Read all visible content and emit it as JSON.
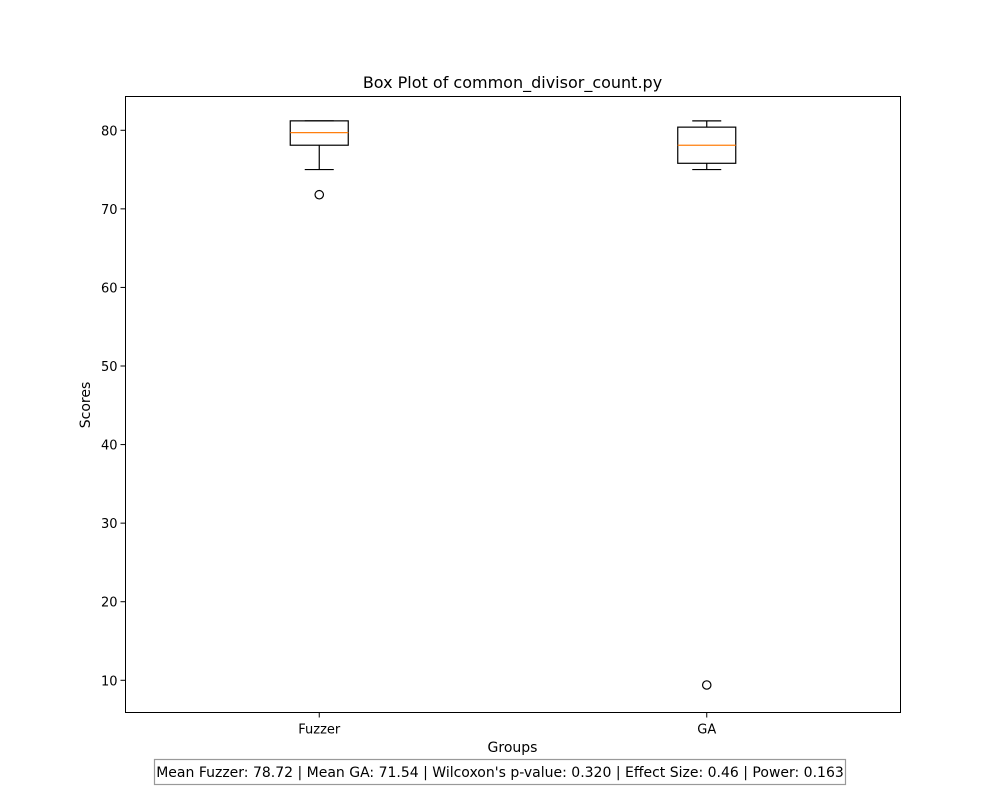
{
  "chart_data": {
    "type": "box",
    "title": "Box Plot of common_divisor_count.py",
    "xlabel": "Groups",
    "ylabel": "Scores",
    "ylim": [
      5.9,
      84.3
    ],
    "yticks": [
      10,
      20,
      30,
      40,
      50,
      60,
      70,
      80
    ],
    "grid": false,
    "categories": [
      "Fuzzer",
      "GA"
    ],
    "boxes": [
      {
        "name": "Fuzzer",
        "whisker_low": 75.0,
        "q1": 78.1,
        "median": 79.7,
        "q3": 81.2,
        "whisker_high": 81.2,
        "outliers": [
          71.8
        ]
      },
      {
        "name": "GA",
        "whisker_low": 75.0,
        "q1": 75.8,
        "median": 78.1,
        "q3": 80.4,
        "whisker_high": 81.2,
        "outliers": [
          9.4
        ]
      }
    ],
    "colors": {
      "box": "#000000",
      "median": "#ff7f0e",
      "outlier": "#000000"
    }
  },
  "footer": {
    "text": "Mean Fuzzer: 78.72 | Mean GA: 71.54 | Wilcoxon's p-value: 0.320 | Effect Size: 0.46 | Power: 0.163"
  }
}
